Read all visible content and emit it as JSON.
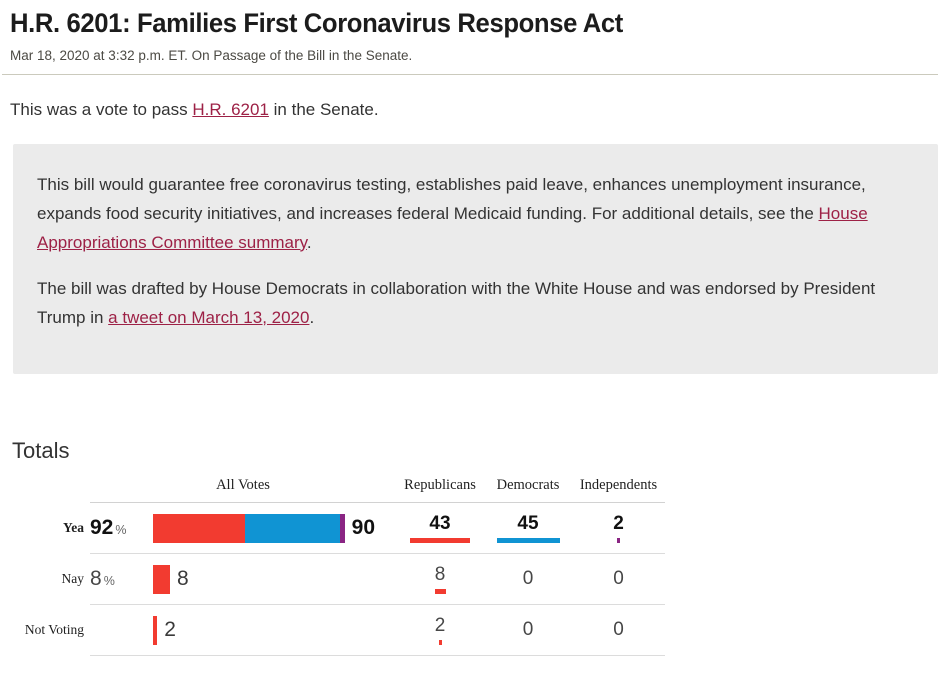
{
  "header": {
    "title": "H.R. 6201: Families First Coronavirus Response Act",
    "subtitle": "Mar 18, 2020 at 3:32 p.m. ET. On Passage of the Bill in the Senate."
  },
  "intro": {
    "pre": "This was a vote to pass ",
    "link_label": "H.R. 6201",
    "post": " in the Senate."
  },
  "summary": {
    "paragraph1": {
      "pre": "This bill would guarantee free coronavirus testing, establishes paid leave, enhances unemployment insurance, expands food security initiatives, and increases federal Medicaid funding. For additional details, see the ",
      "link_label": "House Appropriations Committee summary",
      "post": "."
    },
    "paragraph2": {
      "pre": "The bill was drafted by House Democrats in collaboration with the White House and was endorsed by President Trump in ",
      "link_label": "a tweet on March 13, 2020",
      "post": "."
    }
  },
  "totals": {
    "heading": "Totals",
    "columns": [
      "All Votes",
      "Republicans",
      "Democrats",
      "Independents"
    ],
    "rows": [
      {
        "label": "Yea",
        "percent": "92",
        "percent_symbol": "%",
        "total": "90",
        "republicans": 43,
        "democrats": 45,
        "independents": 2
      },
      {
        "label": "Nay",
        "percent": "8",
        "percent_symbol": "%",
        "total": "8",
        "republicans": 8,
        "democrats": 0,
        "independents": 0
      },
      {
        "label": "Not Voting",
        "percent": "",
        "percent_symbol": "",
        "total": "2",
        "republicans": 2,
        "democrats": 0,
        "independents": 0
      }
    ]
  },
  "colors": {
    "republican": "#f23b30",
    "democrat": "#1094d3",
    "independent": "#8a2583",
    "link": "#9d2146"
  }
}
